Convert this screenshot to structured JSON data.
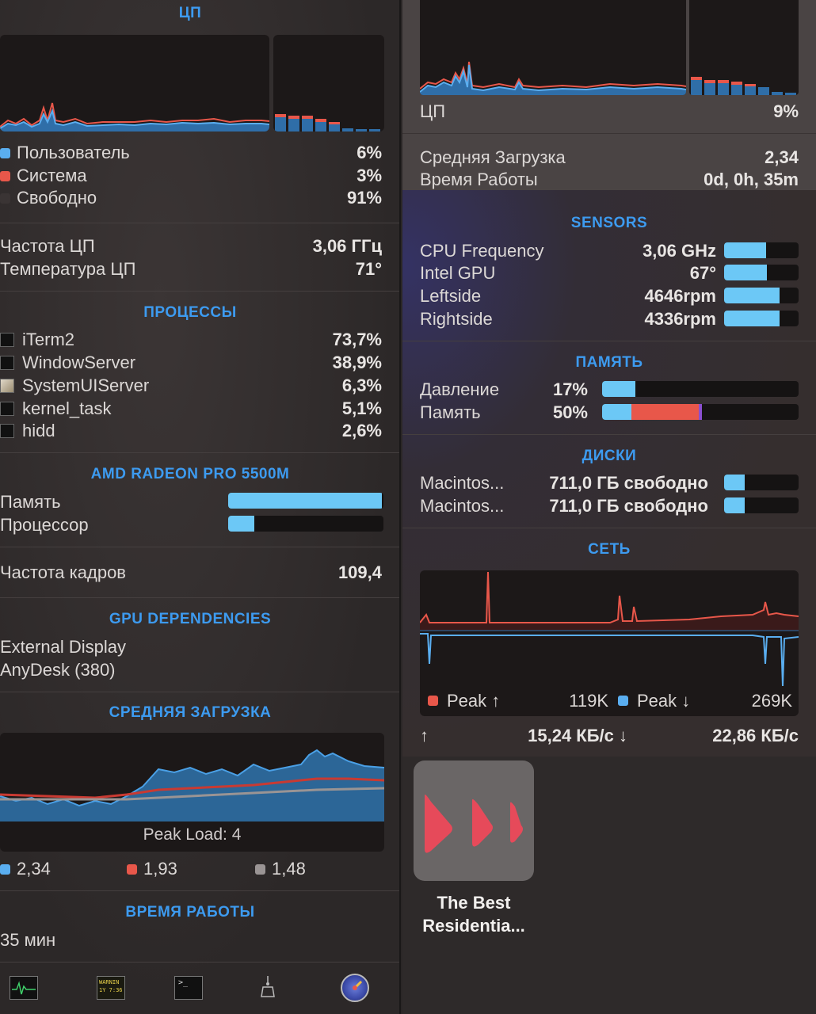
{
  "left": {
    "cpu": {
      "title": "ЦП",
      "rows": [
        {
          "label": "Пользователь",
          "value": "6%",
          "color": "#5aaef0"
        },
        {
          "label": "Система",
          "value": "3%",
          "color": "#e8574a"
        },
        {
          "label": "Свободно",
          "value": "91%",
          "color": "#3a3434"
        }
      ],
      "freq_label": "Частота ЦП",
      "freq_value": "3,06 ГГц",
      "temp_label": "Температура ЦП",
      "temp_value": "71°"
    },
    "processes": {
      "title": "ПРОЦЕССЫ",
      "items": [
        {
          "name": "iTerm2",
          "value": "73,7%",
          "icon": "iterm-icon"
        },
        {
          "name": "WindowServer",
          "value": "38,9%",
          "icon": "terminal-icon"
        },
        {
          "name": "SystemUIServer",
          "value": "6,3%",
          "icon": "systemui-icon"
        },
        {
          "name": "kernel_task",
          "value": "5,1%",
          "icon": "terminal-icon"
        },
        {
          "name": "hidd",
          "value": "2,6%",
          "icon": "terminal-icon"
        }
      ]
    },
    "gpu": {
      "title": "AMD RADEON PRO 5500M",
      "memory_label": "Память",
      "memory_level": 0.99,
      "processor_label": "Процессор",
      "processor_level": 0.17,
      "fps_label": "Частота кадров",
      "fps_value": "109,4"
    },
    "gpu_deps": {
      "title": "GPU DEPENDENCIES",
      "items": [
        "External Display",
        "AnyDesk (380)"
      ]
    },
    "load": {
      "title": "СРЕДНЯЯ ЗАГРУЗКА",
      "peak_text": "Peak Load: 4",
      "legend": [
        {
          "value": "2,34",
          "color": "#5aaef0"
        },
        {
          "value": "1,93",
          "color": "#e8574a"
        },
        {
          "value": "1,48",
          "color": "#9a9494"
        }
      ]
    },
    "uptime": {
      "title": "ВРЕМЯ РАБОТЫ",
      "value": "35 мин"
    },
    "dock": {
      "warning_text_1": "WARNIN",
      "warning_text_2": "1Y 7:36"
    }
  },
  "right": {
    "cpu_label": "ЦП",
    "cpu_value": "9%",
    "load_label": "Средняя Загрузка",
    "load_value": "2,34",
    "uptime_label": "Время Работы",
    "uptime_value": "0d, 0h, 35m",
    "sensors": {
      "title": "SENSORS",
      "items": [
        {
          "label": "CPU Frequency",
          "value": "3,06 GHz",
          "level": 0.56
        },
        {
          "label": "Intel GPU",
          "value": "67°",
          "level": 0.57
        },
        {
          "label": "Leftside",
          "value": "4646rpm",
          "level": 0.74
        },
        {
          "label": "Rightside",
          "value": "4336rpm",
          "level": 0.74
        }
      ]
    },
    "memory": {
      "title": "ПАМЯТЬ",
      "pressure_label": "Давление",
      "pressure_value": "17%",
      "pressure_level": 0.17,
      "mem_label": "Память",
      "mem_value": "50%",
      "mem_segments": [
        {
          "color": "#6cc8f6",
          "level": 0.15
        },
        {
          "color": "#e8574a",
          "level": 0.34
        },
        {
          "color": "#8a4fd0",
          "level": 0.02
        }
      ]
    },
    "disks": {
      "title": "ДИСКИ",
      "items": [
        {
          "name": "Macintos...",
          "free": "711,0 ГБ свободно",
          "level": 0.28
        },
        {
          "name": "Macintos...",
          "free": "711,0 ГБ свободно",
          "level": 0.28
        }
      ]
    },
    "network": {
      "title": "СЕТЬ",
      "peak_up_label": "Peak ↑",
      "peak_up_value": "119K",
      "peak_down_label": "Peak ↓",
      "peak_down_value": "269K",
      "up_arrow": "↑",
      "up_value": "15,24 КБ/с ↓",
      "down_value": "22,86 КБ/с"
    }
  },
  "desktop_item": {
    "label_line1": "The Best",
    "label_line2": "Residentia..."
  }
}
